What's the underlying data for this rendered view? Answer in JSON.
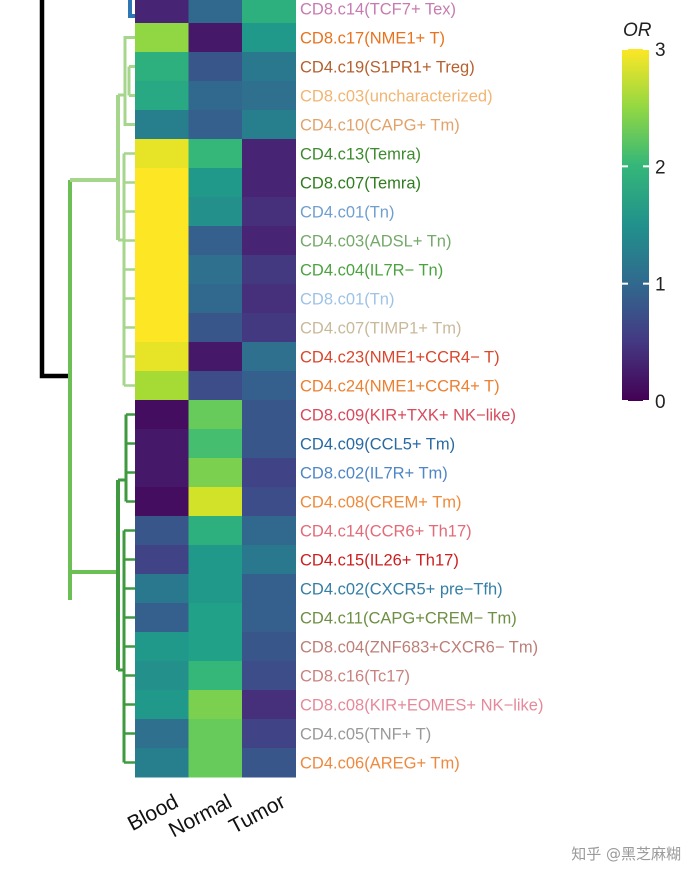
{
  "chart_data": {
    "type": "heatmap",
    "title": "",
    "columns": [
      "Blood",
      "Normal",
      "Tumor"
    ],
    "legend": {
      "title": "OR",
      "ticks": [
        0,
        1,
        2,
        3
      ],
      "range": [
        0,
        3
      ],
      "colormap": "viridis"
    },
    "rows": [
      {
        "label": "CD8.c14(TCF7+ Tex)",
        "color": "#c77bb0",
        "values": [
          0.3,
          1.0,
          1.9
        ]
      },
      {
        "label": "CD8.c17(NME1+ T)",
        "color": "#e8731e",
        "values": [
          2.5,
          0.2,
          1.6
        ]
      },
      {
        "label": "CD4.c19(S1PR1+ Treg)",
        "color": "#b5612f",
        "values": [
          1.9,
          0.8,
          1.2
        ]
      },
      {
        "label": "CD8.c03(uncharacterized)",
        "color": "#f2b572",
        "values": [
          1.8,
          1.0,
          1.1
        ]
      },
      {
        "label": "CD4.c10(CAPG+ Tm)",
        "color": "#e2a36a",
        "values": [
          1.3,
          0.9,
          1.3
        ]
      },
      {
        "label": "CD4.c13(Temra)",
        "color": "#3d8b2e",
        "values": [
          2.9,
          2.0,
          0.3
        ]
      },
      {
        "label": "CD8.c07(Temra)",
        "color": "#2f7d1f",
        "values": [
          3.0,
          1.6,
          0.3
        ]
      },
      {
        "label": "CD4.c01(Tn)",
        "color": "#6f9fd0",
        "values": [
          3.0,
          1.5,
          0.4
        ]
      },
      {
        "label": "CD4.c03(ADSL+ Tn)",
        "color": "#74a96a",
        "values": [
          3.0,
          0.9,
          0.3
        ]
      },
      {
        "label": "CD4.c04(IL7R− Tn)",
        "color": "#4ba33f",
        "values": [
          3.0,
          1.1,
          0.5
        ]
      },
      {
        "label": "CD8.c01(Tn)",
        "color": "#9ec3e6",
        "values": [
          3.0,
          1.0,
          0.4
        ]
      },
      {
        "label": "CD4.c07(TIMP1+ Tm)",
        "color": "#c9b99a",
        "values": [
          3.0,
          0.8,
          0.5
        ]
      },
      {
        "label": "CD4.c23(NME1+CCR4− T)",
        "color": "#d9472c",
        "values": [
          2.9,
          0.2,
          1.1
        ]
      },
      {
        "label": "CD4.c24(NME1+CCR4+ T)",
        "color": "#ec8032",
        "values": [
          2.6,
          0.7,
          0.9
        ]
      },
      {
        "label": "CD8.c09(KIR+TXK+ NK−like)",
        "color": "#d84a5c",
        "values": [
          0.1,
          2.3,
          0.8
        ]
      },
      {
        "label": "CD4.c09(CCL5+ Tm)",
        "color": "#2a6aa3",
        "values": [
          0.2,
          2.1,
          0.8
        ]
      },
      {
        "label": "CD8.c02(IL7R+ Tm)",
        "color": "#4f86c6",
        "values": [
          0.2,
          2.4,
          0.6
        ]
      },
      {
        "label": "CD4.c08(CREM+ Tm)",
        "color": "#ef8a3a",
        "values": [
          0.1,
          2.8,
          0.7
        ]
      },
      {
        "label": "CD4.c14(CCR6+ Th17)",
        "color": "#e36b78",
        "values": [
          0.8,
          1.9,
          1.0
        ]
      },
      {
        "label": "CD4.c15(IL26+ Th17)",
        "color": "#cc1f1f",
        "values": [
          0.6,
          1.6,
          1.2
        ]
      },
      {
        "label": "CD4.c02(CXCR5+ pre−Tfh)",
        "color": "#357fa6",
        "values": [
          1.2,
          1.6,
          0.9
        ]
      },
      {
        "label": "CD4.c11(CAPG+CREM− Tm)",
        "color": "#6e8f44",
        "values": [
          0.9,
          1.7,
          0.9
        ]
      },
      {
        "label": "CD8.c04(ZNF683+CXCR6− Tm)",
        "color": "#bd7f78",
        "values": [
          1.6,
          1.7,
          0.8
        ]
      },
      {
        "label": "CD8.c16(Tc17)",
        "color": "#c9837f",
        "values": [
          1.5,
          2.0,
          0.7
        ]
      },
      {
        "label": "CD8.c08(KIR+EOMES+ NK−like)",
        "color": "#e58a9a",
        "values": [
          1.6,
          2.4,
          0.4
        ]
      },
      {
        "label": "CD4.c05(TNF+ T)",
        "color": "#999999",
        "values": [
          1.1,
          2.3,
          0.6
        ]
      },
      {
        "label": "CD4.c06(AREG+ Tm)",
        "color": "#ee8a40",
        "values": [
          1.3,
          2.3,
          0.8
        ]
      }
    ]
  },
  "colors": {
    "dendro_black": "#000000",
    "dendro_light_green": "#a6d68b",
    "dendro_mid_green": "#6cbf55",
    "dendro_dark_green": "#3f9a3f",
    "dendro_blue": "#2f77b4"
  },
  "watermark": "知乎 @黑芝麻糊"
}
